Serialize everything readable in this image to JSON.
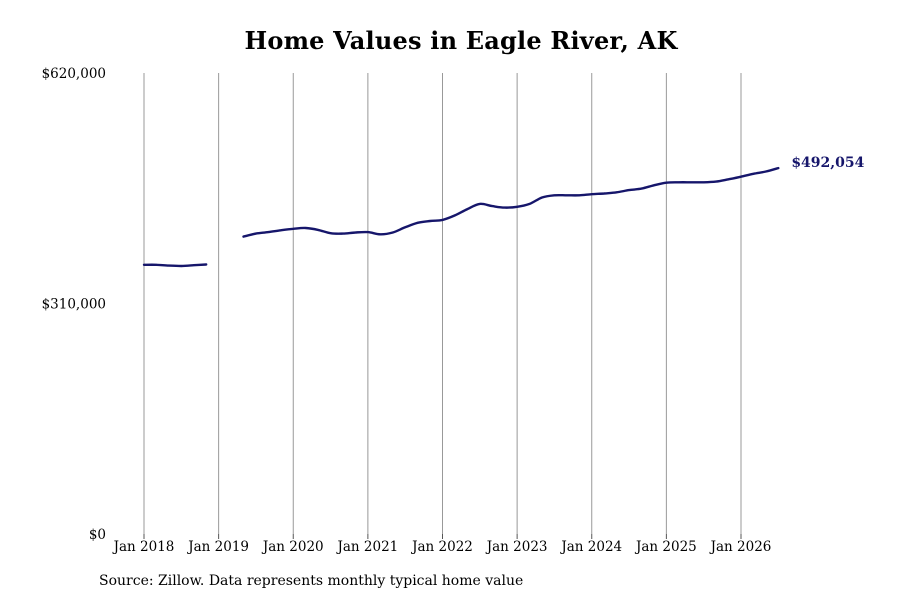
{
  "chart_data": {
    "type": "line",
    "title": "Home Values in Eagle River, AK",
    "ylim": [
      0,
      620000
    ],
    "y_ticks": [
      {
        "value": 0,
        "label": "$0"
      },
      {
        "value": 310000,
        "label": "$310,000"
      },
      {
        "value": 620000,
        "label": "$620,000"
      }
    ],
    "x_ticks": [
      {
        "value": "2018-01",
        "label": "Jan 2018"
      },
      {
        "value": "2019-01",
        "label": "Jan 2019"
      },
      {
        "value": "2020-01",
        "label": "Jan 2020"
      },
      {
        "value": "2021-01",
        "label": "Jan 2021"
      },
      {
        "value": "2022-01",
        "label": "Jan 2022"
      },
      {
        "value": "2023-01",
        "label": "Jan 2023"
      },
      {
        "value": "2024-01",
        "label": "Jan 2024"
      },
      {
        "value": "2025-01",
        "label": "Jan 2025"
      },
      {
        "value": "2026-01",
        "label": "Jan 2026"
      }
    ],
    "grid": "vertical",
    "line_color": "#16166b",
    "series": [
      {
        "segments": [
          [
            [
              "2018-01",
              362000
            ],
            [
              "2018-03",
              362000
            ],
            [
              "2018-05",
              361000
            ],
            [
              "2018-07",
              360500
            ],
            [
              "2018-09",
              361500
            ],
            [
              "2018-11",
              362500
            ]
          ],
          [
            [
              "2019-05",
              400000
            ],
            [
              "2019-07",
              404000
            ],
            [
              "2019-09",
              406000
            ],
            [
              "2019-11",
              408500
            ],
            [
              "2020-01",
              410500
            ],
            [
              "2020-03",
              411500
            ],
            [
              "2020-05",
              409000
            ],
            [
              "2020-07",
              404500
            ],
            [
              "2020-09",
              404000
            ],
            [
              "2020-11",
              405500
            ],
            [
              "2021-01",
              406000
            ],
            [
              "2021-03",
              403000
            ],
            [
              "2021-05",
              405500
            ],
            [
              "2021-07",
              412500
            ],
            [
              "2021-09",
              418500
            ],
            [
              "2021-11",
              421000
            ],
            [
              "2022-01",
              422500
            ],
            [
              "2022-03",
              428500
            ],
            [
              "2022-05",
              437000
            ],
            [
              "2022-07",
              444000
            ],
            [
              "2022-09",
              441000
            ],
            [
              "2022-11",
              439000
            ],
            [
              "2023-01",
              440000
            ],
            [
              "2023-03",
              444000
            ],
            [
              "2023-05",
              452500
            ],
            [
              "2023-07",
              455500
            ],
            [
              "2023-09",
              455500
            ],
            [
              "2023-11",
              455500
            ],
            [
              "2024-01",
              457000
            ],
            [
              "2024-03",
              458000
            ],
            [
              "2024-05",
              459500
            ],
            [
              "2024-07",
              462500
            ],
            [
              "2024-09",
              464500
            ],
            [
              "2024-11",
              469000
            ],
            [
              "2025-01",
              472500
            ],
            [
              "2025-03",
              473000
            ],
            [
              "2025-05",
              473000
            ],
            [
              "2025-07",
              473000
            ],
            [
              "2025-09",
              474000
            ],
            [
              "2025-11",
              477000
            ],
            [
              "2026-01",
              480500
            ],
            [
              "2026-03",
              484500
            ],
            [
              "2026-05",
              487500
            ],
            [
              "2026-07",
              492054
            ]
          ]
        ]
      }
    ],
    "end_label": {
      "text": "$492,054",
      "color": "#16166b"
    },
    "source": "Source: Zillow. Data represents monthly typical home value"
  }
}
